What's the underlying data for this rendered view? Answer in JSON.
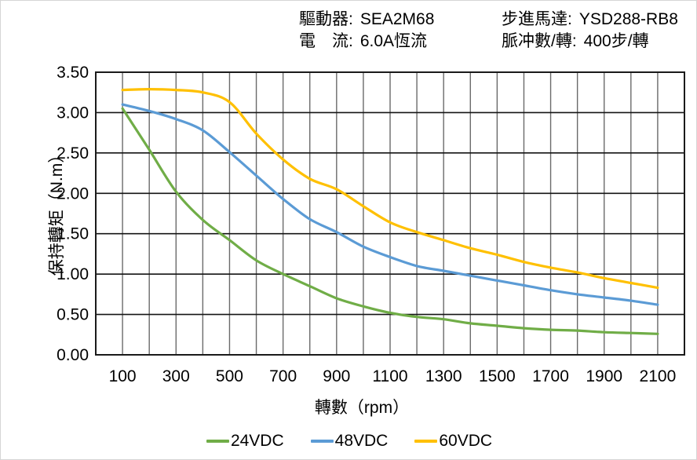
{
  "header": {
    "col1": [
      {
        "label": "驅動器:",
        "value": "SEA2M68"
      },
      {
        "label": "電　流:",
        "value": "6.0A恆流"
      }
    ],
    "col2": [
      {
        "label": "步進馬達:",
        "value": "YSD288-RB8"
      },
      {
        "label": "脈冲數/轉:",
        "value": "400步/轉"
      }
    ]
  },
  "chart_data": {
    "type": "line",
    "title": "",
    "xlabel": "轉數（rpm）",
    "ylabel": "保持轉矩（N.m）",
    "xlim": [
      0,
      2200
    ],
    "ylim": [
      0,
      3.5
    ],
    "grid": "both",
    "legend_position": "bottom",
    "x_gridline_step": 100,
    "x_ticks_labeled": [
      100,
      300,
      500,
      700,
      900,
      1100,
      1300,
      1500,
      1700,
      1900,
      2100
    ],
    "y_tick_values": [
      0,
      0.5,
      1.0,
      1.5,
      2.0,
      2.5,
      3.0,
      3.5
    ],
    "y_tick_labels": [
      "0.00",
      "0.50",
      "1.00",
      "1.50",
      "2.00",
      "2.50",
      "3.00",
      "3.50"
    ],
    "x": [
      100,
      200,
      300,
      400,
      500,
      600,
      700,
      800,
      900,
      1000,
      1100,
      1200,
      1300,
      1400,
      1500,
      1600,
      1700,
      1800,
      1900,
      2000,
      2100
    ],
    "series": [
      {
        "name": "24VDC",
        "color": "#70AD47",
        "values": [
          3.05,
          2.54,
          2.02,
          1.67,
          1.42,
          1.17,
          1.0,
          0.85,
          0.7,
          0.6,
          0.52,
          0.47,
          0.44,
          0.39,
          0.36,
          0.33,
          0.31,
          0.3,
          0.28,
          0.27,
          0.26
        ]
      },
      {
        "name": "48VDC",
        "color": "#5B9BD5",
        "values": [
          3.1,
          3.02,
          2.92,
          2.78,
          2.51,
          2.22,
          1.93,
          1.68,
          1.52,
          1.34,
          1.21,
          1.1,
          1.04,
          0.98,
          0.92,
          0.86,
          0.8,
          0.75,
          0.71,
          0.67,
          0.62
        ]
      },
      {
        "name": "60VDC",
        "color": "#FFC000",
        "values": [
          3.28,
          3.29,
          3.28,
          3.25,
          3.13,
          2.74,
          2.42,
          2.18,
          2.05,
          1.84,
          1.64,
          1.52,
          1.42,
          1.32,
          1.24,
          1.15,
          1.08,
          1.02,
          0.95,
          0.89,
          0.83
        ]
      }
    ],
    "colors": {
      "plot_border": "#1a1a1a",
      "h_gridline": "#141414",
      "v_gridline": "#6a6a6a",
      "text": "#000000",
      "background": "#ffffff"
    }
  }
}
